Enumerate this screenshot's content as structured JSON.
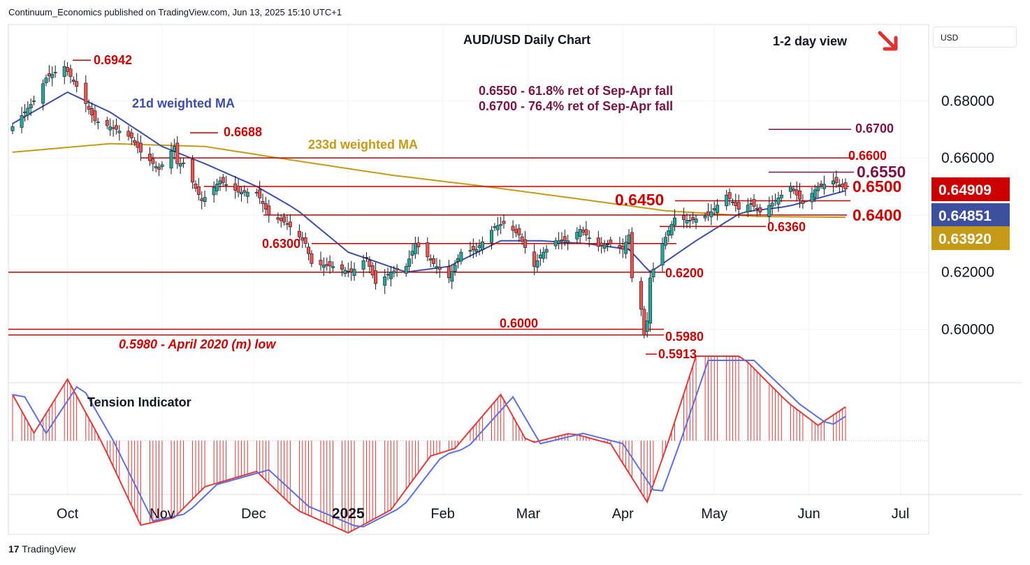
{
  "header": {
    "publisher_text": "Continuum_Economics published on TradingView.com, Jun 13, 2025 15:10 UTC+1"
  },
  "currency_button": "USD",
  "footer": {
    "logo_text": "TradingView",
    "logo_glyph": "17"
  },
  "colors": {
    "up_candle": "#26a69a",
    "down_candle": "#ef5350",
    "candle_wick": "#131722",
    "level_line": "#cc0000",
    "target_line": "#7a1346",
    "ma21": "#3b4ea8",
    "ma233": "#c79a15",
    "price_badge": "#cc0000",
    "ma21_badge": "#3d4f9f",
    "ma233_badge": "#c49a16",
    "tension_bar": "#e03a3a",
    "tension_signal": "#5b6fe0"
  },
  "chart_data": [
    {
      "type": "candlestick",
      "title": "AUD/USD Daily Chart",
      "view_label": "1-2 day view",
      "view_arrow": "arrow-down-right-icon",
      "x_ticks": [
        "Oct",
        "Nov",
        "Dec",
        "2025",
        "Feb",
        "Mar",
        "Apr",
        "May",
        "Jun",
        "Jul"
      ],
      "y_ticks": [
        "0.68000",
        "0.66000",
        "0.62000",
        "0.60000"
      ],
      "ylim": [
        0.588,
        0.698
      ],
      "grid": true,
      "price_badges": [
        {
          "value": "0.64909",
          "role": "last-price"
        },
        {
          "value": "0.64851",
          "role": "21d-ma"
        },
        {
          "value": "0.63920",
          "role": "233d-ma"
        }
      ],
      "annotations": [
        {
          "text": "21d weighted MA"
        },
        {
          "text": "233d weighted MA"
        },
        {
          "text": "0.6550 - 61.8% ret of Sep-Apr fall"
        },
        {
          "text": "0.6700 - 76.4% ret of Sep-Apr fall"
        },
        {
          "text": "0.5980 - April 2020 (m) low"
        }
      ],
      "levels": [
        {
          "label": "0.6942",
          "value": 0.6942
        },
        {
          "label": "0.6688",
          "value": 0.6688
        },
        {
          "label": "0.6700",
          "value": 0.67
        },
        {
          "label": "0.6600",
          "value": 0.66
        },
        {
          "label": "0.6550",
          "value": 0.655
        },
        {
          "label": "0.6500",
          "value": 0.65
        },
        {
          "label": "0.6450",
          "value": 0.645
        },
        {
          "label": "0.6400",
          "value": 0.64
        },
        {
          "label": "0.6360",
          "value": 0.636
        },
        {
          "label": "0.6300",
          "value": 0.63
        },
        {
          "label": "0.6200",
          "value": 0.62
        },
        {
          "label": "0.6000",
          "value": 0.6
        },
        {
          "label": "0.5980",
          "value": 0.598
        },
        {
          "label": "0.5913",
          "value": 0.5913
        }
      ],
      "close_anchors": [
        [
          "2024-09-13",
          0.671
        ],
        [
          "2024-09-20",
          0.68
        ],
        [
          "2024-09-24",
          0.688
        ],
        [
          "2024-09-30",
          0.692
        ],
        [
          "2024-10-04",
          0.685
        ],
        [
          "2024-10-10",
          0.673
        ],
        [
          "2024-10-17",
          0.67
        ],
        [
          "2024-10-22",
          0.667
        ],
        [
          "2024-10-25",
          0.662
        ],
        [
          "2024-10-31",
          0.656
        ],
        [
          "2024-11-05",
          0.664
        ],
        [
          "2024-11-06",
          0.658
        ],
        [
          "2024-11-08",
          0.658
        ],
        [
          "2024-11-14",
          0.645
        ],
        [
          "2024-11-20",
          0.652
        ],
        [
          "2024-11-26",
          0.648
        ],
        [
          "2024-12-02",
          0.648
        ],
        [
          "2024-12-06",
          0.64
        ],
        [
          "2024-12-12",
          0.637
        ],
        [
          "2024-12-18",
          0.63
        ],
        [
          "2024-12-20",
          0.623
        ],
        [
          "2024-12-27",
          0.622
        ],
        [
          "2025-01-02",
          0.62
        ],
        [
          "2025-01-07",
          0.625
        ],
        [
          "2025-01-10",
          0.616
        ],
        [
          "2025-01-15",
          0.62
        ],
        [
          "2025-01-20",
          0.622
        ],
        [
          "2025-01-23",
          0.63
        ],
        [
          "2025-01-29",
          0.623
        ],
        [
          "2025-02-03",
          0.618
        ],
        [
          "2025-02-07",
          0.627
        ],
        [
          "2025-02-12",
          0.628
        ],
        [
          "2025-02-18",
          0.636
        ],
        [
          "2025-02-21",
          0.637
        ],
        [
          "2025-02-26",
          0.633
        ],
        [
          "2025-03-03",
          0.622
        ],
        [
          "2025-03-05",
          0.626
        ],
        [
          "2025-03-10",
          0.631
        ],
        [
          "2025-03-14",
          0.631
        ],
        [
          "2025-03-18",
          0.635
        ],
        [
          "2025-03-24",
          0.629
        ],
        [
          "2025-03-28",
          0.63
        ],
        [
          "2025-04-01",
          0.628
        ],
        [
          "2025-04-03",
          0.633
        ],
        [
          "2025-04-04",
          0.618
        ],
        [
          "2025-04-07",
          0.607
        ],
        [
          "2025-04-08",
          0.598
        ],
        [
          "2025-04-09",
          0.603
        ],
        [
          "2025-04-10",
          0.618
        ],
        [
          "2025-04-14",
          0.63
        ],
        [
          "2025-04-18",
          0.639
        ],
        [
          "2025-04-23",
          0.638
        ],
        [
          "2025-04-29",
          0.64
        ],
        [
          "2025-05-05",
          0.647
        ],
        [
          "2025-05-09",
          0.642
        ],
        [
          "2025-05-13",
          0.644
        ],
        [
          "2025-05-16",
          0.641
        ],
        [
          "2025-05-21",
          0.645
        ],
        [
          "2025-05-26",
          0.65
        ],
        [
          "2025-05-30",
          0.644
        ],
        [
          "2025-06-04",
          0.65
        ],
        [
          "2025-06-09",
          0.652
        ],
        [
          "2025-06-13",
          0.6491
        ]
      ],
      "ma21_anchors": [
        [
          "2024-09-13",
          0.672
        ],
        [
          "2024-10-01",
          0.683
        ],
        [
          "2024-10-15",
          0.676
        ],
        [
          "2024-11-01",
          0.664
        ],
        [
          "2024-11-15",
          0.658
        ],
        [
          "2024-12-02",
          0.65
        ],
        [
          "2024-12-15",
          0.642
        ],
        [
          "2025-01-01",
          0.627
        ],
        [
          "2025-01-20",
          0.62
        ],
        [
          "2025-02-03",
          0.622
        ],
        [
          "2025-02-20",
          0.631
        ],
        [
          "2025-03-05",
          0.631
        ],
        [
          "2025-03-20",
          0.63
        ],
        [
          "2025-04-03",
          0.628
        ],
        [
          "2025-04-10",
          0.62
        ],
        [
          "2025-04-25",
          0.631
        ],
        [
          "2025-05-10",
          0.641
        ],
        [
          "2025-05-25",
          0.643
        ],
        [
          "2025-06-13",
          0.6485
        ]
      ],
      "ma233_anchors": [
        [
          "2024-09-13",
          0.662
        ],
        [
          "2024-10-15",
          0.665
        ],
        [
          "2024-11-15",
          0.664
        ],
        [
          "2024-12-15",
          0.659
        ],
        [
          "2025-01-15",
          0.654
        ],
        [
          "2025-02-15",
          0.65
        ],
        [
          "2025-03-15",
          0.646
        ],
        [
          "2025-04-15",
          0.6415
        ],
        [
          "2025-05-15",
          0.6395
        ],
        [
          "2025-06-13",
          0.6392
        ]
      ]
    },
    {
      "type": "line",
      "title": "Tension Indicator",
      "ylim": [
        -1,
        1
      ],
      "tension_anchors": [
        [
          "2024-09-13",
          0.3
        ],
        [
          "2024-09-20",
          0.05
        ],
        [
          "2024-10-01",
          0.4
        ],
        [
          "2024-10-12",
          0.0
        ],
        [
          "2024-10-25",
          -0.55
        ],
        [
          "2024-11-05",
          -0.5
        ],
        [
          "2024-11-15",
          -0.3
        ],
        [
          "2024-12-02",
          -0.2
        ],
        [
          "2024-12-15",
          -0.45
        ],
        [
          "2025-01-01",
          -0.6
        ],
        [
          "2025-01-15",
          -0.45
        ],
        [
          "2025-01-28",
          -0.1
        ],
        [
          "2025-02-05",
          -0.05
        ],
        [
          "2025-02-20",
          0.3
        ],
        [
          "2025-03-01",
          -0.02
        ],
        [
          "2025-03-15",
          0.05
        ],
        [
          "2025-03-28",
          -0.02
        ],
        [
          "2025-04-09",
          -0.4
        ],
        [
          "2025-04-16",
          0.0
        ],
        [
          "2025-04-25",
          0.55
        ],
        [
          "2025-05-10",
          0.55
        ],
        [
          "2025-05-25",
          0.25
        ],
        [
          "2025-06-04",
          0.1
        ],
        [
          "2025-06-13",
          0.22
        ]
      ]
    }
  ]
}
